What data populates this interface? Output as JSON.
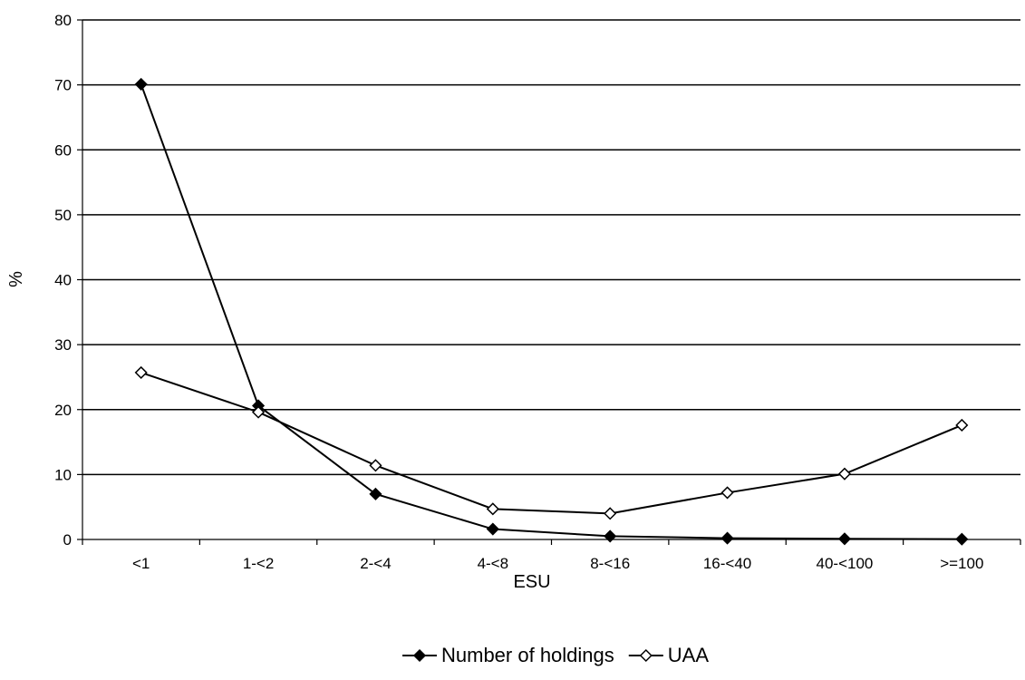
{
  "chart_data": {
    "type": "line",
    "title": "",
    "xlabel": "ESU",
    "ylabel": "%",
    "ylim": [
      0,
      80
    ],
    "yticks": [
      0,
      10,
      20,
      30,
      40,
      50,
      60,
      70,
      80
    ],
    "grid": true,
    "legend_position": "bottom",
    "categories": [
      "<1",
      "1-<2",
      "2-<4",
      "4-<8",
      "8-<16",
      "16-<40",
      "40-<100",
      ">=100"
    ],
    "series": [
      {
        "name": "Number of holdings",
        "marker": "filled-diamond",
        "color": "#000000",
        "values": [
          70.1,
          20.6,
          7.0,
          1.6,
          0.5,
          0.2,
          0.1,
          0.05
        ]
      },
      {
        "name": "UAA",
        "marker": "hollow-diamond",
        "color": "#000000",
        "values": [
          25.7,
          19.6,
          11.4,
          4.7,
          4.0,
          7.2,
          10.1,
          17.6
        ]
      }
    ]
  }
}
